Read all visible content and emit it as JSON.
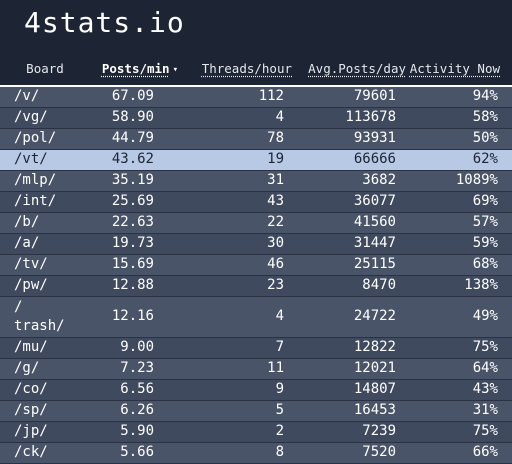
{
  "site": {
    "title": "4stats.io"
  },
  "table": {
    "headers": {
      "board": "Board",
      "posts_per_min": "Posts/min",
      "threads_per_hour": "Threads/hour",
      "avg_posts_per_day": "Avg.Posts/day",
      "activity_now": "Activity Now",
      "sort_indicator": "▾"
    },
    "rows": [
      {
        "board": "/v/",
        "posts_per_min": "67.09",
        "threads_per_hour": "112",
        "avg_posts_per_day": "79601",
        "activity_now": "94%"
      },
      {
        "board": "/vg/",
        "posts_per_min": "58.90",
        "threads_per_hour": "4",
        "avg_posts_per_day": "113678",
        "activity_now": "58%"
      },
      {
        "board": "/pol/",
        "posts_per_min": "44.79",
        "threads_per_hour": "78",
        "avg_posts_per_day": "93931",
        "activity_now": "50%"
      },
      {
        "board": "/vt/",
        "posts_per_min": "43.62",
        "threads_per_hour": "19",
        "avg_posts_per_day": "66666",
        "activity_now": "62%",
        "highlighted": true
      },
      {
        "board": "/mlp/",
        "posts_per_min": "35.19",
        "threads_per_hour": "31",
        "avg_posts_per_day": "3682",
        "activity_now": "1089%"
      },
      {
        "board": "/int/",
        "posts_per_min": "25.69",
        "threads_per_hour": "43",
        "avg_posts_per_day": "36077",
        "activity_now": "69%"
      },
      {
        "board": "/b/",
        "posts_per_min": "22.63",
        "threads_per_hour": "22",
        "avg_posts_per_day": "41560",
        "activity_now": "57%"
      },
      {
        "board": "/a/",
        "posts_per_min": "19.73",
        "threads_per_hour": "30",
        "avg_posts_per_day": "31447",
        "activity_now": "59%"
      },
      {
        "board": "/tv/",
        "posts_per_min": "15.69",
        "threads_per_hour": "46",
        "avg_posts_per_day": "25115",
        "activity_now": "68%"
      },
      {
        "board": "/pw/",
        "posts_per_min": "12.88",
        "threads_per_hour": "23",
        "avg_posts_per_day": "8470",
        "activity_now": "138%"
      },
      {
        "board": "/trash/",
        "posts_per_min": "12.16",
        "threads_per_hour": "4",
        "avg_posts_per_day": "24722",
        "activity_now": "49%",
        "wrapped": true
      },
      {
        "board": "/mu/",
        "posts_per_min": "9.00",
        "threads_per_hour": "7",
        "avg_posts_per_day": "12822",
        "activity_now": "75%"
      },
      {
        "board": "/g/",
        "posts_per_min": "7.23",
        "threads_per_hour": "11",
        "avg_posts_per_day": "12021",
        "activity_now": "64%"
      },
      {
        "board": "/co/",
        "posts_per_min": "6.56",
        "threads_per_hour": "9",
        "avg_posts_per_day": "14807",
        "activity_now": "43%"
      },
      {
        "board": "/sp/",
        "posts_per_min": "6.26",
        "threads_per_hour": "5",
        "avg_posts_per_day": "16453",
        "activity_now": "31%"
      },
      {
        "board": "/jp/",
        "posts_per_min": "5.90",
        "threads_per_hour": "2",
        "avg_posts_per_day": "7239",
        "activity_now": "75%"
      },
      {
        "board": "/ck/",
        "posts_per_min": "5.66",
        "threads_per_hour": "8",
        "avg_posts_per_day": "7520",
        "activity_now": "66%"
      }
    ]
  }
}
